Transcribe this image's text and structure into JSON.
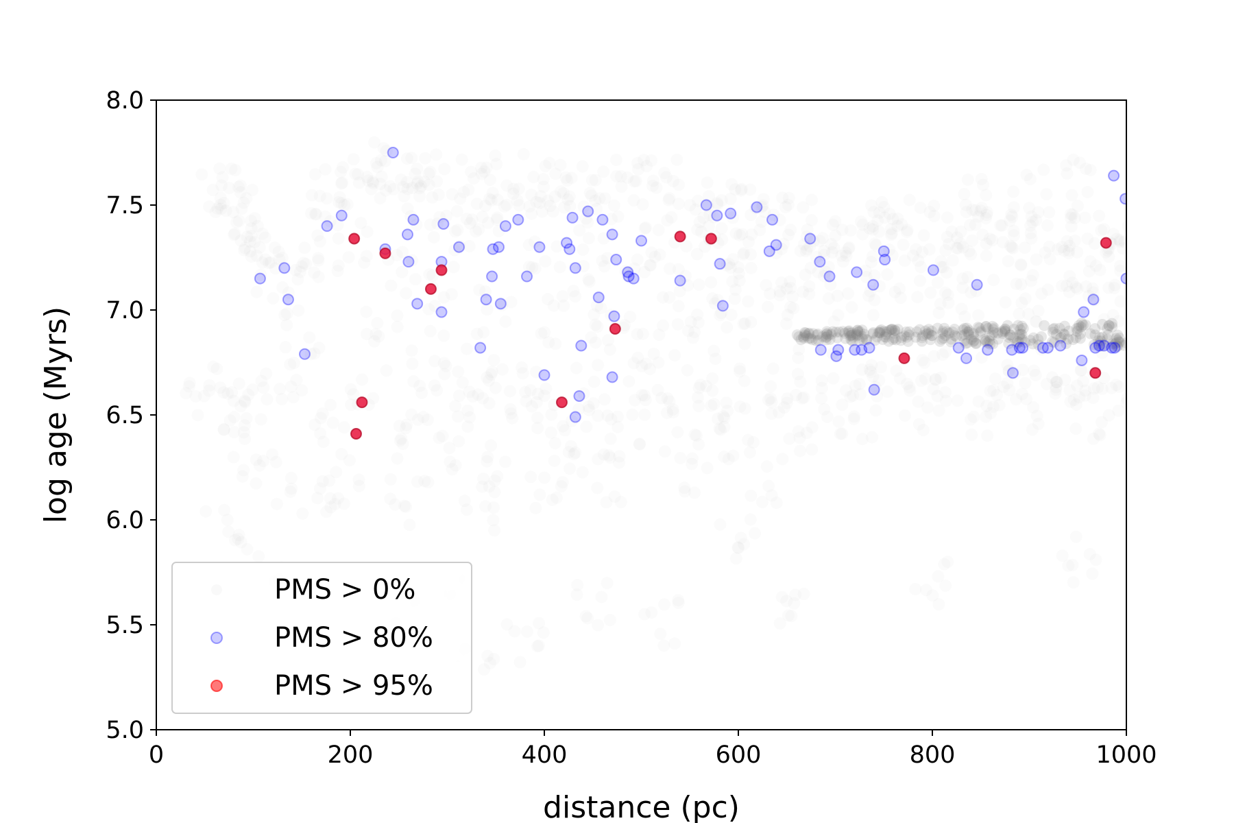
{
  "chart_data": {
    "type": "scatter",
    "title": "",
    "xlabel": "distance (pc)",
    "ylabel": "log age (Myrs)",
    "xlim": [
      0,
      1000
    ],
    "ylim": [
      5.0,
      8.0
    ],
    "xticks": [
      "0",
      "200",
      "400",
      "600",
      "800",
      "1000"
    ],
    "yticks": [
      "5.0",
      "5.5",
      "6.0",
      "6.5",
      "7.0",
      "7.5",
      "8.0"
    ],
    "grid": false,
    "legend_position": "lower-left",
    "series": [
      {
        "name": "PMS > 0%",
        "color": "#808080",
        "style": "dense faint cloud",
        "points": [
          [
            60,
            7.55
          ],
          [
            70,
            7.5
          ],
          [
            80,
            7.58
          ],
          [
            90,
            7.45
          ],
          [
            100,
            7.35
          ],
          [
            110,
            7.25
          ],
          [
            120,
            7.15
          ],
          [
            140,
            7.1
          ],
          [
            160,
            7.25
          ],
          [
            175,
            7.45
          ],
          [
            180,
            7.55
          ],
          [
            200,
            7.6
          ],
          [
            220,
            7.65
          ],
          [
            240,
            7.6
          ],
          [
            260,
            7.55
          ],
          [
            280,
            7.5
          ],
          [
            300,
            7.45
          ],
          [
            320,
            7.4
          ],
          [
            340,
            7.45
          ],
          [
            360,
            7.5
          ],
          [
            380,
            7.55
          ],
          [
            400,
            7.58
          ],
          [
            420,
            7.6
          ],
          [
            440,
            7.58
          ],
          [
            460,
            7.55
          ],
          [
            480,
            7.6
          ],
          [
            500,
            7.62
          ],
          [
            520,
            7.6
          ],
          [
            540,
            7.55
          ],
          [
            560,
            7.5
          ],
          [
            580,
            7.45
          ],
          [
            600,
            7.48
          ],
          [
            620,
            7.5
          ],
          [
            640,
            7.45
          ],
          [
            660,
            7.4
          ],
          [
            680,
            7.35
          ],
          [
            700,
            7.3
          ],
          [
            720,
            7.35
          ],
          [
            740,
            7.4
          ],
          [
            760,
            7.42
          ],
          [
            780,
            7.4
          ],
          [
            800,
            7.38
          ],
          [
            820,
            7.35
          ],
          [
            840,
            7.38
          ],
          [
            860,
            7.4
          ],
          [
            880,
            7.38
          ],
          [
            900,
            7.35
          ],
          [
            920,
            7.38
          ],
          [
            940,
            7.4
          ],
          [
            960,
            7.38
          ],
          [
            980,
            7.35
          ],
          [
            995,
            7.3
          ],
          [
            200,
            7.3
          ],
          [
            250,
            7.2
          ],
          [
            300,
            7.1
          ],
          [
            350,
            7.0
          ],
          [
            400,
            6.95
          ],
          [
            450,
            6.9
          ],
          [
            500,
            6.85
          ],
          [
            550,
            6.9
          ],
          [
            600,
            6.95
          ],
          [
            650,
            7.0
          ],
          [
            700,
            7.05
          ],
          [
            750,
            7.1
          ],
          [
            800,
            7.05
          ],
          [
            850,
            7.0
          ],
          [
            900,
            7.05
          ],
          [
            950,
            7.1
          ],
          [
            990,
            7.05
          ],
          [
            230,
            6.9
          ],
          [
            280,
            6.8
          ],
          [
            330,
            6.7
          ],
          [
            360,
            6.65
          ],
          [
            400,
            6.6
          ],
          [
            450,
            6.62
          ],
          [
            500,
            6.68
          ],
          [
            560,
            6.7
          ],
          [
            620,
            6.65
          ],
          [
            680,
            6.7
          ],
          [
            740,
            6.72
          ],
          [
            800,
            6.68
          ],
          [
            860,
            6.65
          ],
          [
            920,
            6.7
          ],
          [
            970,
            6.68
          ],
          [
            150,
            6.9
          ],
          [
            130,
            6.7
          ],
          [
            100,
            6.6
          ],
          [
            80,
            6.5
          ],
          [
            60,
            6.55
          ],
          [
            50,
            6.65
          ],
          [
            250,
            6.4
          ],
          [
            300,
            6.3
          ],
          [
            350,
            6.25
          ],
          [
            420,
            6.35
          ],
          [
            480,
            6.4
          ],
          [
            540,
            6.45
          ],
          [
            600,
            6.4
          ],
          [
            660,
            6.45
          ],
          [
            720,
            6.5
          ],
          [
            780,
            6.55
          ],
          [
            850,
            6.5
          ],
          [
            910,
            6.55
          ],
          [
            960,
            6.5
          ],
          [
            200,
            6.2
          ],
          [
            260,
            6.1
          ],
          [
            330,
            6.05
          ],
          [
            400,
            6.15
          ],
          [
            470,
            6.2
          ],
          [
            550,
            6.25
          ],
          [
            630,
            6.2
          ],
          [
            180,
            6.45
          ],
          [
            220,
            6.6
          ],
          [
            270,
            6.55
          ],
          [
            320,
            6.5
          ],
          [
            380,
            6.55
          ],
          [
            430,
            6.45
          ],
          [
            510,
            6.5
          ],
          [
            580,
            6.55
          ],
          [
            650,
            6.6
          ],
          [
            700,
            6.55
          ],
          [
            760,
            6.6
          ],
          [
            820,
            6.58
          ],
          [
            880,
            6.6
          ],
          [
            940,
            6.62
          ],
          [
            990,
            6.6
          ],
          [
            400,
            7.3
          ],
          [
            450,
            7.35
          ],
          [
            520,
            7.3
          ],
          [
            560,
            7.25
          ],
          [
            610,
            7.2
          ],
          [
            450,
            7.1
          ],
          [
            500,
            7.15
          ],
          [
            540,
            7.05
          ],
          [
            590,
            7.1
          ],
          [
            630,
            7.15
          ],
          [
            660,
            7.2
          ],
          [
            690,
            7.15
          ],
          [
            730,
            7.2
          ],
          [
            770,
            7.25
          ],
          [
            820,
            7.2
          ],
          [
            880,
            7.15
          ],
          [
            930,
            7.2
          ],
          [
            975,
            7.22
          ],
          [
            320,
            7.6
          ],
          [
            280,
            7.65
          ],
          [
            240,
            7.7
          ],
          [
            360,
            7.62
          ],
          [
            900,
            7.55
          ],
          [
            950,
            7.6
          ],
          [
            850,
            7.5
          ],
          [
            90,
            6.3
          ],
          [
            120,
            6.2
          ],
          [
            160,
            6.1
          ],
          [
            70,
            5.95
          ],
          [
            110,
            5.8
          ],
          [
            300,
            5.7
          ],
          [
            450,
            5.6
          ],
          [
            600,
            5.9
          ],
          [
            800,
            5.7
          ],
          [
            950,
            5.8
          ],
          [
            380,
            5.4
          ],
          [
            520,
            5.5
          ],
          [
            660,
            5.6
          ],
          [
            250,
            5.5
          ],
          [
            330,
            5.3
          ]
        ]
      },
      {
        "name": "",
        "color": "#808080",
        "style": "dense band",
        "x": [
          660,
          1000
        ],
        "y": [
          6.83,
          6.95
        ]
      },
      {
        "name": "PMS > 80%",
        "color": "#0000ff",
        "points": [
          [
            107,
            7.15
          ],
          [
            132,
            7.2
          ],
          [
            136,
            7.05
          ],
          [
            153,
            6.79
          ],
          [
            176,
            7.4
          ],
          [
            191,
            7.45
          ],
          [
            244,
            7.75
          ],
          [
            236,
            7.29
          ],
          [
            259,
            7.36
          ],
          [
            260,
            7.23
          ],
          [
            265,
            7.43
          ],
          [
            269,
            7.03
          ],
          [
            294,
            7.23
          ],
          [
            294,
            6.99
          ],
          [
            296,
            7.41
          ],
          [
            312,
            7.3
          ],
          [
            334,
            6.82
          ],
          [
            340,
            7.05
          ],
          [
            346,
            7.16
          ],
          [
            347,
            7.29
          ],
          [
            353,
            7.3
          ],
          [
            355,
            7.03
          ],
          [
            360,
            7.4
          ],
          [
            373,
            7.43
          ],
          [
            382,
            7.16
          ],
          [
            395,
            7.3
          ],
          [
            400,
            6.69
          ],
          [
            423,
            7.32
          ],
          [
            426,
            7.29
          ],
          [
            429,
            7.44
          ],
          [
            432,
            7.2
          ],
          [
            436,
            6.59
          ],
          [
            438,
            6.83
          ],
          [
            445,
            7.47
          ],
          [
            456,
            7.06
          ],
          [
            460,
            7.43
          ],
          [
            470,
            7.36
          ],
          [
            470,
            6.68
          ],
          [
            472,
            6.97
          ],
          [
            474,
            7.24
          ],
          [
            432,
            6.49
          ],
          [
            486,
            7.18
          ],
          [
            487,
            7.16
          ],
          [
            492,
            7.15
          ],
          [
            500,
            7.33
          ],
          [
            540,
            7.14
          ],
          [
            567,
            7.5
          ],
          [
            578,
            7.45
          ],
          [
            581,
            7.22
          ],
          [
            584,
            7.02
          ],
          [
            592,
            7.46
          ],
          [
            619,
            7.49
          ],
          [
            632,
            7.28
          ],
          [
            635,
            7.43
          ],
          [
            639,
            7.31
          ],
          [
            674,
            7.34
          ],
          [
            684,
            7.23
          ],
          [
            685,
            6.81
          ],
          [
            694,
            7.16
          ],
          [
            701,
            6.78
          ],
          [
            703,
            6.81
          ],
          [
            720,
            6.81
          ],
          [
            722,
            7.18
          ],
          [
            727,
            6.81
          ],
          [
            735,
            6.82
          ],
          [
            739,
            7.12
          ],
          [
            740,
            6.62
          ],
          [
            750,
            7.28
          ],
          [
            751,
            7.24
          ],
          [
            801,
            7.19
          ],
          [
            827,
            6.82
          ],
          [
            835,
            6.77
          ],
          [
            846,
            7.12
          ],
          [
            857,
            6.81
          ],
          [
            882,
            6.81
          ],
          [
            883,
            6.7
          ],
          [
            890,
            6.82
          ],
          [
            893,
            6.82
          ],
          [
            914,
            6.82
          ],
          [
            919,
            6.82
          ],
          [
            932,
            6.83
          ],
          [
            954,
            6.76
          ],
          [
            956,
            6.99
          ],
          [
            966,
            7.05
          ],
          [
            968,
            6.82
          ],
          [
            972,
            6.83
          ],
          [
            977,
            6.83
          ],
          [
            985,
            6.82
          ],
          [
            987,
            7.64
          ],
          [
            999,
            7.53
          ],
          [
            1000,
            7.15
          ],
          [
            988,
            6.82
          ]
        ]
      },
      {
        "name": "PMS > 95%",
        "color": "#ff0000",
        "points": [
          [
            204,
            7.34
          ],
          [
            206,
            6.41
          ],
          [
            212,
            6.56
          ],
          [
            236,
            7.27
          ],
          [
            283,
            7.1
          ],
          [
            294,
            7.19
          ],
          [
            418,
            6.56
          ],
          [
            473,
            6.91
          ],
          [
            540,
            7.35
          ],
          [
            572,
            7.34
          ],
          [
            771,
            6.77
          ],
          [
            968,
            6.7
          ],
          [
            979,
            7.32
          ]
        ]
      }
    ]
  }
}
